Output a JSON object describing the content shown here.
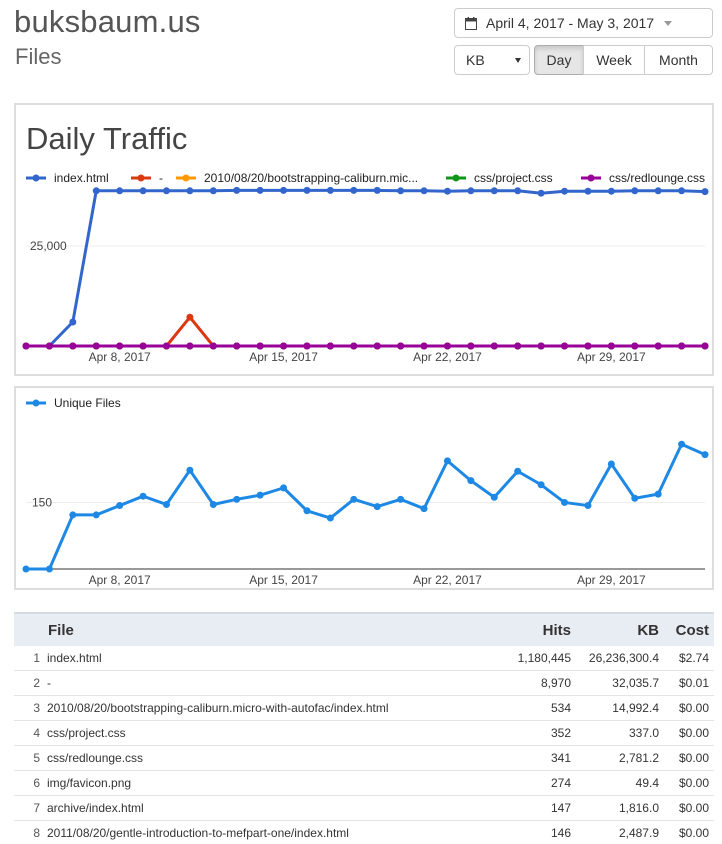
{
  "header": {
    "site": "buksbaum.us",
    "section": "Files"
  },
  "controls": {
    "date_range": "April 4, 2017 - May 3, 2017",
    "unit": "KB",
    "granularity": [
      "Day",
      "Week",
      "Month"
    ],
    "active_granularity": "Day"
  },
  "colors": {
    "index_html": "#3366cc",
    "dash": "#dc3912",
    "bootstrapping": "#ff9900",
    "project_css": "#109618",
    "redlounge_css": "#990099",
    "unique_files": "#1e88e5"
  },
  "chart_data": [
    {
      "type": "line",
      "title": "Daily Traffic",
      "x": [
        "Apr 4",
        "Apr 5",
        "Apr 6",
        "Apr 7",
        "Apr 8",
        "Apr 9",
        "Apr 10",
        "Apr 11",
        "Apr 12",
        "Apr 13",
        "Apr 14",
        "Apr 15",
        "Apr 16",
        "Apr 17",
        "Apr 18",
        "Apr 19",
        "Apr 20",
        "Apr 21",
        "Apr 22",
        "Apr 23",
        "Apr 24",
        "Apr 25",
        "Apr 26",
        "Apr 27",
        "Apr 28",
        "Apr 29",
        "Apr 30",
        "May 1",
        "May 2",
        "May 3"
      ],
      "x_ticks": [
        "Apr 8, 2017",
        "Apr 15, 2017",
        "Apr 22, 2017",
        "Apr 29, 2017"
      ],
      "y_ticks": [
        "25,000"
      ],
      "ylim": [
        0,
        55000
      ],
      "legend": "top",
      "series": [
        {
          "name": "index.html",
          "color": "#3366cc",
          "values": [
            0,
            0,
            6000,
            38800,
            38800,
            38800,
            38800,
            38800,
            38800,
            38900,
            38900,
            38900,
            38900,
            38900,
            38900,
            38900,
            38800,
            38800,
            38700,
            38800,
            38800,
            38800,
            38200,
            38700,
            38700,
            38700,
            38800,
            38800,
            38800,
            38600
          ]
        },
        {
          "name": "-",
          "color": "#dc3912",
          "values": [
            0,
            0,
            0,
            0,
            0,
            0,
            0,
            7200,
            0,
            0,
            0,
            0,
            0,
            0,
            0,
            0,
            0,
            0,
            0,
            0,
            0,
            0,
            0,
            0,
            0,
            0,
            0,
            0,
            0,
            0
          ]
        },
        {
          "name": "2010/08/20/bootstrapping-caliburn.mic...",
          "color": "#ff9900",
          "values": [
            0,
            0,
            0,
            0,
            0,
            0,
            0,
            0,
            0,
            0,
            0,
            0,
            0,
            0,
            0,
            0,
            0,
            0,
            0,
            0,
            0,
            0,
            0,
            0,
            0,
            0,
            0,
            0,
            0,
            0
          ]
        },
        {
          "name": "css/project.css",
          "color": "#109618",
          "values": [
            0,
            0,
            0,
            0,
            0,
            0,
            0,
            0,
            0,
            0,
            0,
            0,
            0,
            0,
            0,
            0,
            0,
            0,
            0,
            0,
            0,
            0,
            0,
            0,
            0,
            0,
            0,
            0,
            0,
            0
          ]
        },
        {
          "name": "css/redlounge.css",
          "color": "#990099",
          "values": [
            0,
            0,
            0,
            0,
            0,
            0,
            0,
            0,
            0,
            0,
            0,
            0,
            0,
            0,
            0,
            0,
            0,
            0,
            0,
            0,
            0,
            0,
            0,
            0,
            0,
            0,
            0,
            0,
            0,
            0
          ]
        }
      ]
    },
    {
      "type": "line",
      "x": [
        "Apr 4",
        "Apr 5",
        "Apr 6",
        "Apr 7",
        "Apr 8",
        "Apr 9",
        "Apr 10",
        "Apr 11",
        "Apr 12",
        "Apr 13",
        "Apr 14",
        "Apr 15",
        "Apr 16",
        "Apr 17",
        "Apr 18",
        "Apr 19",
        "Apr 20",
        "Apr 21",
        "Apr 22",
        "Apr 23",
        "Apr 24",
        "Apr 25",
        "Apr 26",
        "Apr 27",
        "Apr 28",
        "Apr 29",
        "Apr 30",
        "May 1",
        "May 2",
        "May 3"
      ],
      "x_ticks": [
        "Apr 8, 2017",
        "Apr 15, 2017",
        "Apr 22, 2017",
        "Apr 29, 2017"
      ],
      "y_ticks": [
        "150"
      ],
      "ylim": [
        86,
        230
      ],
      "legend": "top",
      "series": [
        {
          "name": "Unique Files",
          "color": "#1e88e5",
          "values": [
            86,
            86,
            138,
            138,
            147,
            156,
            148,
            181,
            148,
            153,
            157,
            164,
            142,
            135,
            153,
            146,
            153,
            144,
            190,
            171,
            155,
            180,
            167,
            150,
            147,
            187,
            154,
            158,
            206,
            196
          ]
        }
      ]
    }
  ],
  "table": {
    "columns": [
      "File",
      "Hits",
      "KB",
      "Cost"
    ],
    "rows": [
      {
        "idx": "1",
        "file": "index.html",
        "hits": "1,180,445",
        "kb": "26,236,300.4",
        "cost": "$2.74"
      },
      {
        "idx": "2",
        "file": "-",
        "hits": "8,970",
        "kb": "32,035.7",
        "cost": "$0.01"
      },
      {
        "idx": "3",
        "file": "2010/08/20/bootstrapping-caliburn.micro-with-autofac/index.html",
        "hits": "534",
        "kb": "14,992.4",
        "cost": "$0.00"
      },
      {
        "idx": "4",
        "file": "css/project.css",
        "hits": "352",
        "kb": "337.0",
        "cost": "$0.00"
      },
      {
        "idx": "5",
        "file": "css/redlounge.css",
        "hits": "341",
        "kb": "2,781.2",
        "cost": "$0.00"
      },
      {
        "idx": "6",
        "file": "img/favicon.png",
        "hits": "274",
        "kb": "49.4",
        "cost": "$0.00"
      },
      {
        "idx": "7",
        "file": "archive/index.html",
        "hits": "147",
        "kb": "1,816.0",
        "cost": "$0.00"
      },
      {
        "idx": "8",
        "file": "2011/08/20/gentle-introduction-to-mefpart-one/index.html",
        "hits": "146",
        "kb": "2,487.9",
        "cost": "$0.00"
      }
    ]
  }
}
